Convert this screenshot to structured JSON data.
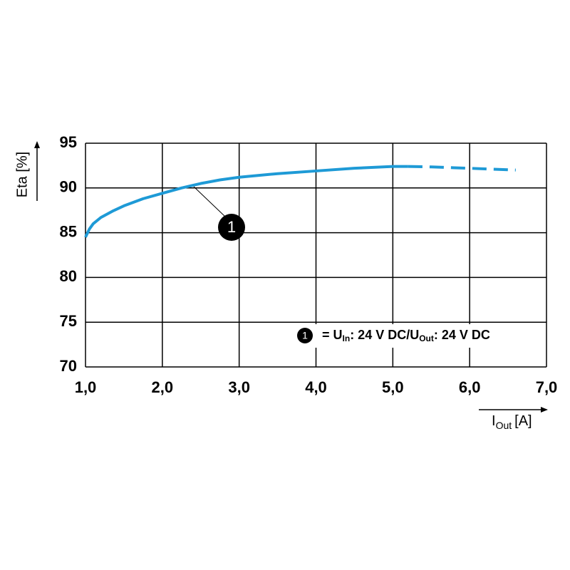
{
  "chart_data": {
    "type": "line",
    "y_label": "Eta [%]",
    "x_label": {
      "main": "I",
      "sub": "Out",
      "unit": "[A]"
    },
    "series": [
      {
        "color": "#1e9ad6",
        "line_style": "solid",
        "x": [
          1.0,
          1.05,
          1.1,
          1.2,
          1.35,
          1.5,
          1.75,
          2.0,
          2.25,
          2.5,
          2.75,
          3.0,
          3.5,
          4.0,
          4.5,
          5.0,
          5.2
        ],
        "values": [
          84.5,
          85.4,
          86.0,
          86.7,
          87.4,
          88.0,
          88.8,
          89.4,
          90.0,
          90.5,
          90.9,
          91.2,
          91.6,
          91.9,
          92.2,
          92.4,
          92.4
        ]
      },
      {
        "color": "#1e9ad6",
        "line_style": "dashed",
        "x": [
          5.2,
          5.5,
          6.0,
          6.6
        ],
        "values": [
          92.4,
          92.35,
          92.2,
          92.0
        ]
      }
    ],
    "xlim": [
      1,
      7
    ],
    "xticks": [
      {
        "value": 1,
        "label": "1,0"
      },
      {
        "value": 2,
        "label": "2,0"
      },
      {
        "value": 3,
        "label": "3,0"
      },
      {
        "value": 4,
        "label": "4,0"
      },
      {
        "value": 5,
        "label": "5,0"
      },
      {
        "value": 6,
        "label": "6,0"
      },
      {
        "value": 7,
        "label": "7,0"
      }
    ],
    "ylim": [
      70,
      95
    ],
    "yticks": [
      70,
      75,
      80,
      85,
      90,
      95
    ],
    "grid": true,
    "callout": "1",
    "annotation": {
      "marker": "1",
      "parts": [
        "= U",
        "In",
        ": 24 V DC/U",
        "Out",
        ": 24 V DC"
      ]
    }
  }
}
